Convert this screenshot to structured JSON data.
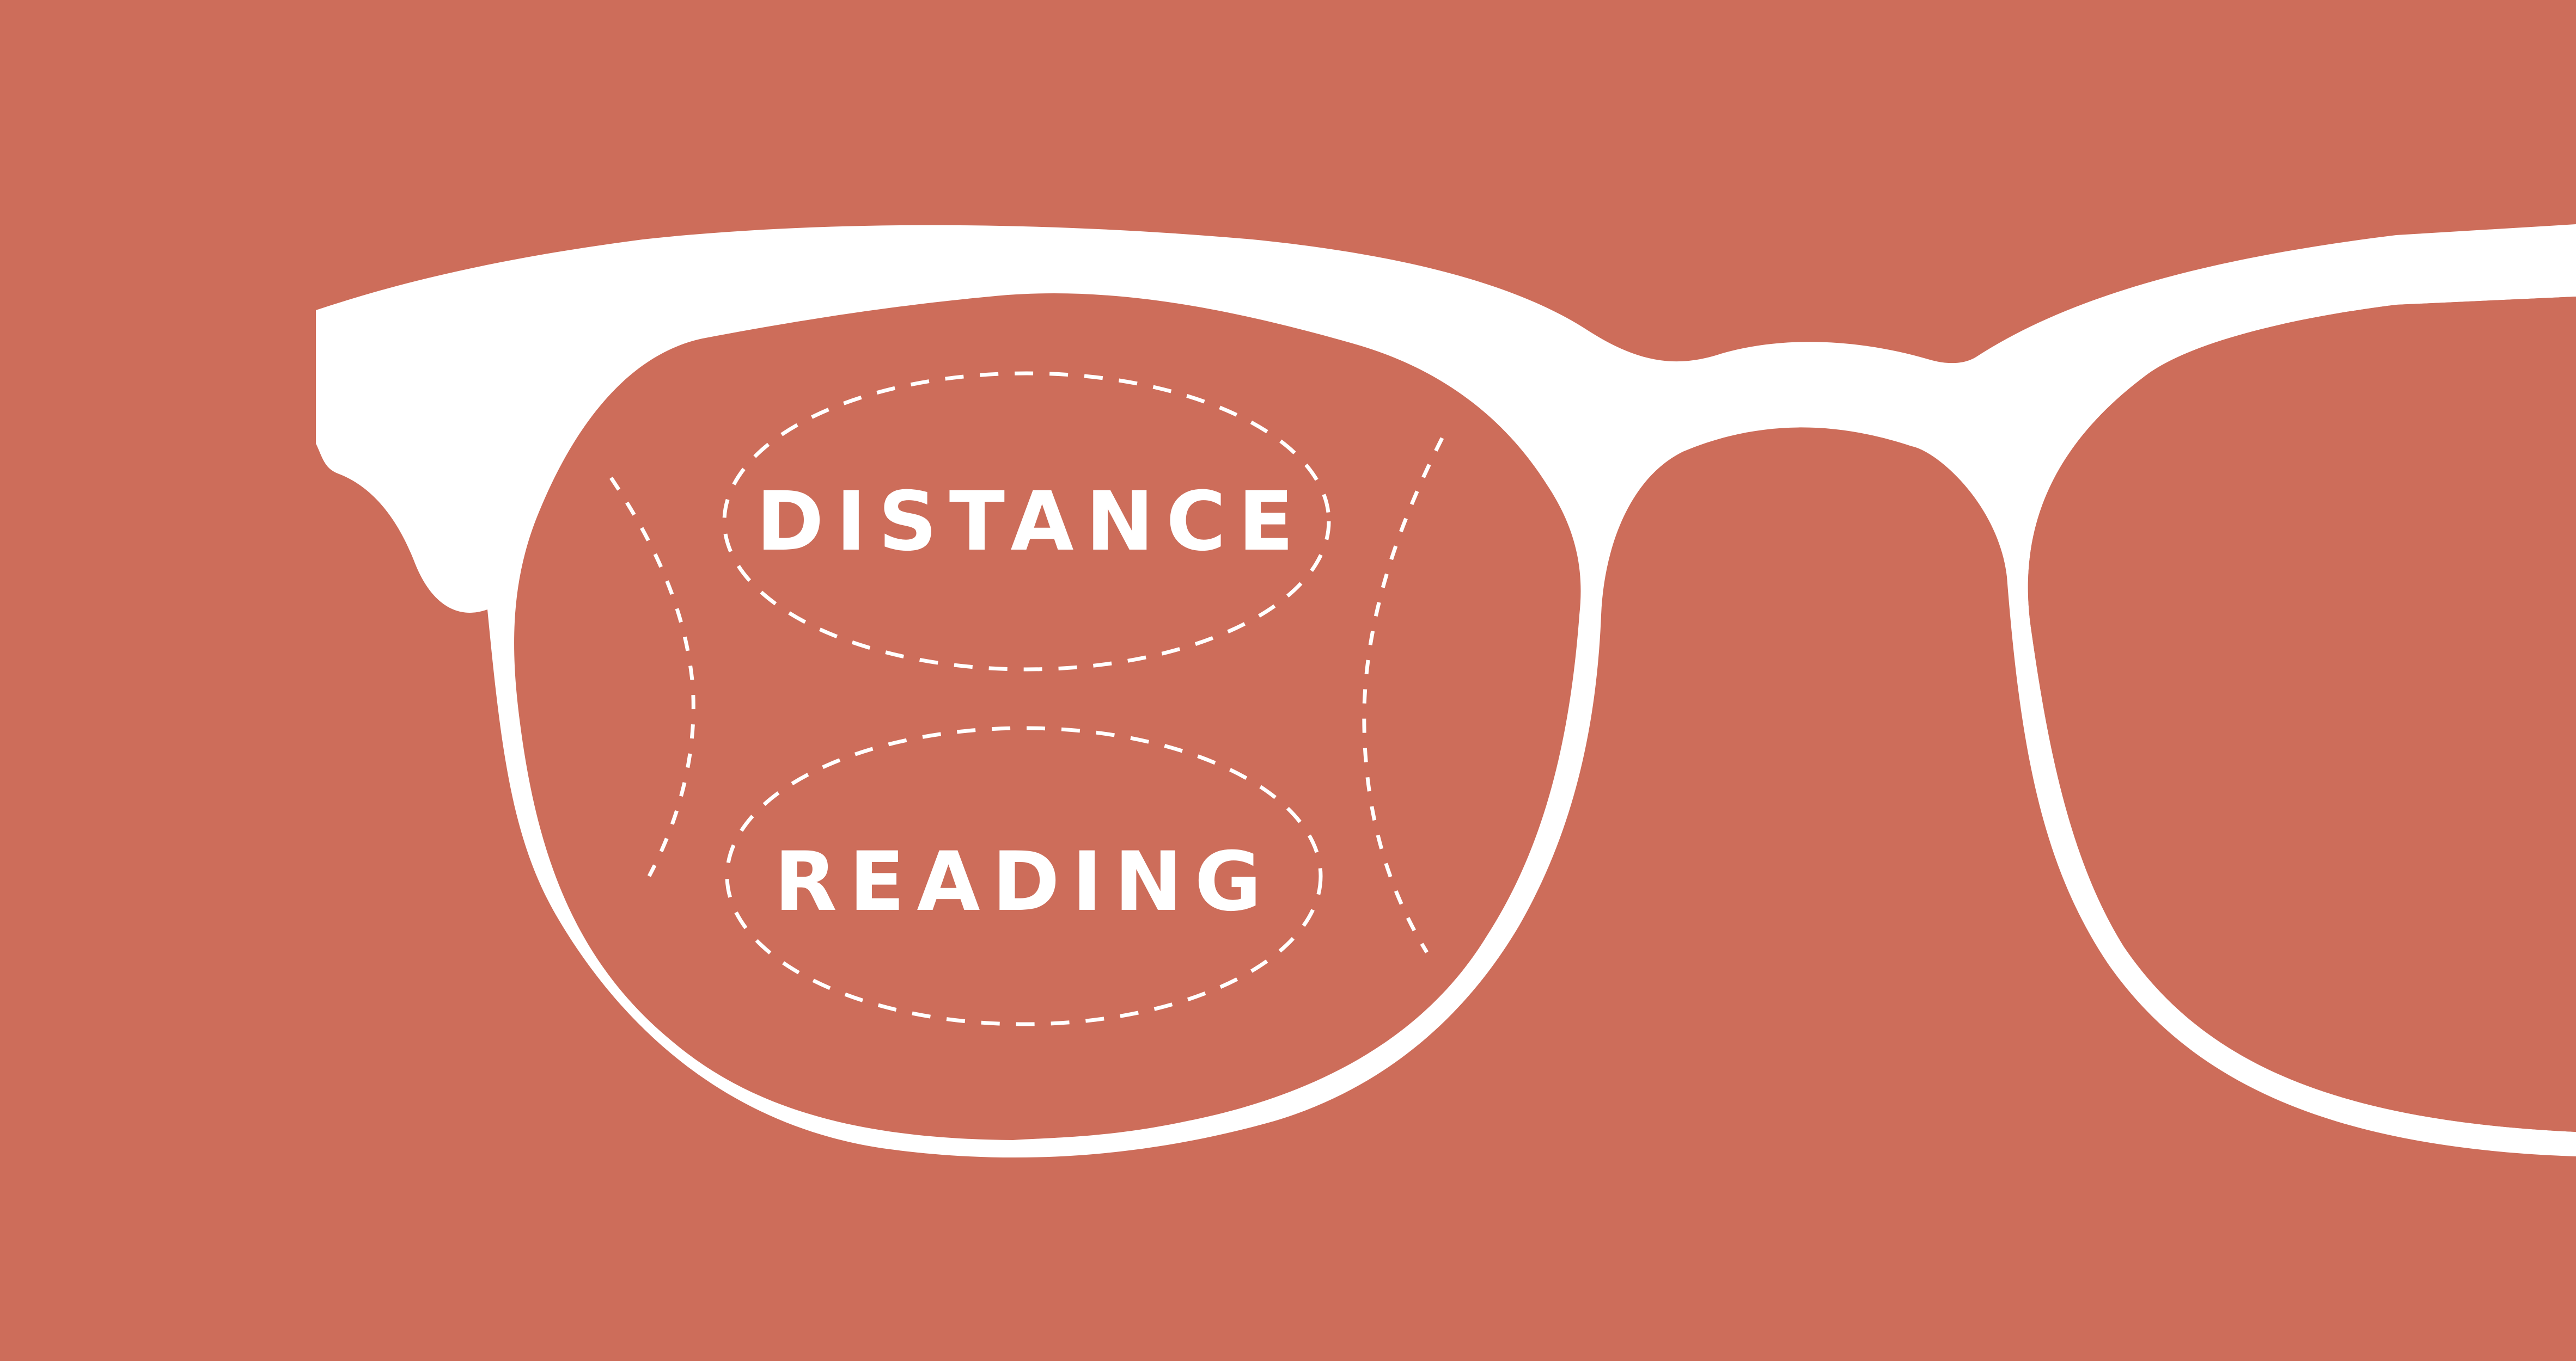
{
  "colors": {
    "background": "#CD6D5A",
    "frame": "#FFFFFF",
    "zone_outline": "#FFFFFF",
    "label": "#FFFFFF"
  },
  "icons": {
    "frame": "eyeglasses-frame-icon"
  },
  "zones": {
    "distance": {
      "label": "DISTANCE"
    },
    "reading": {
      "label": "READING"
    }
  }
}
